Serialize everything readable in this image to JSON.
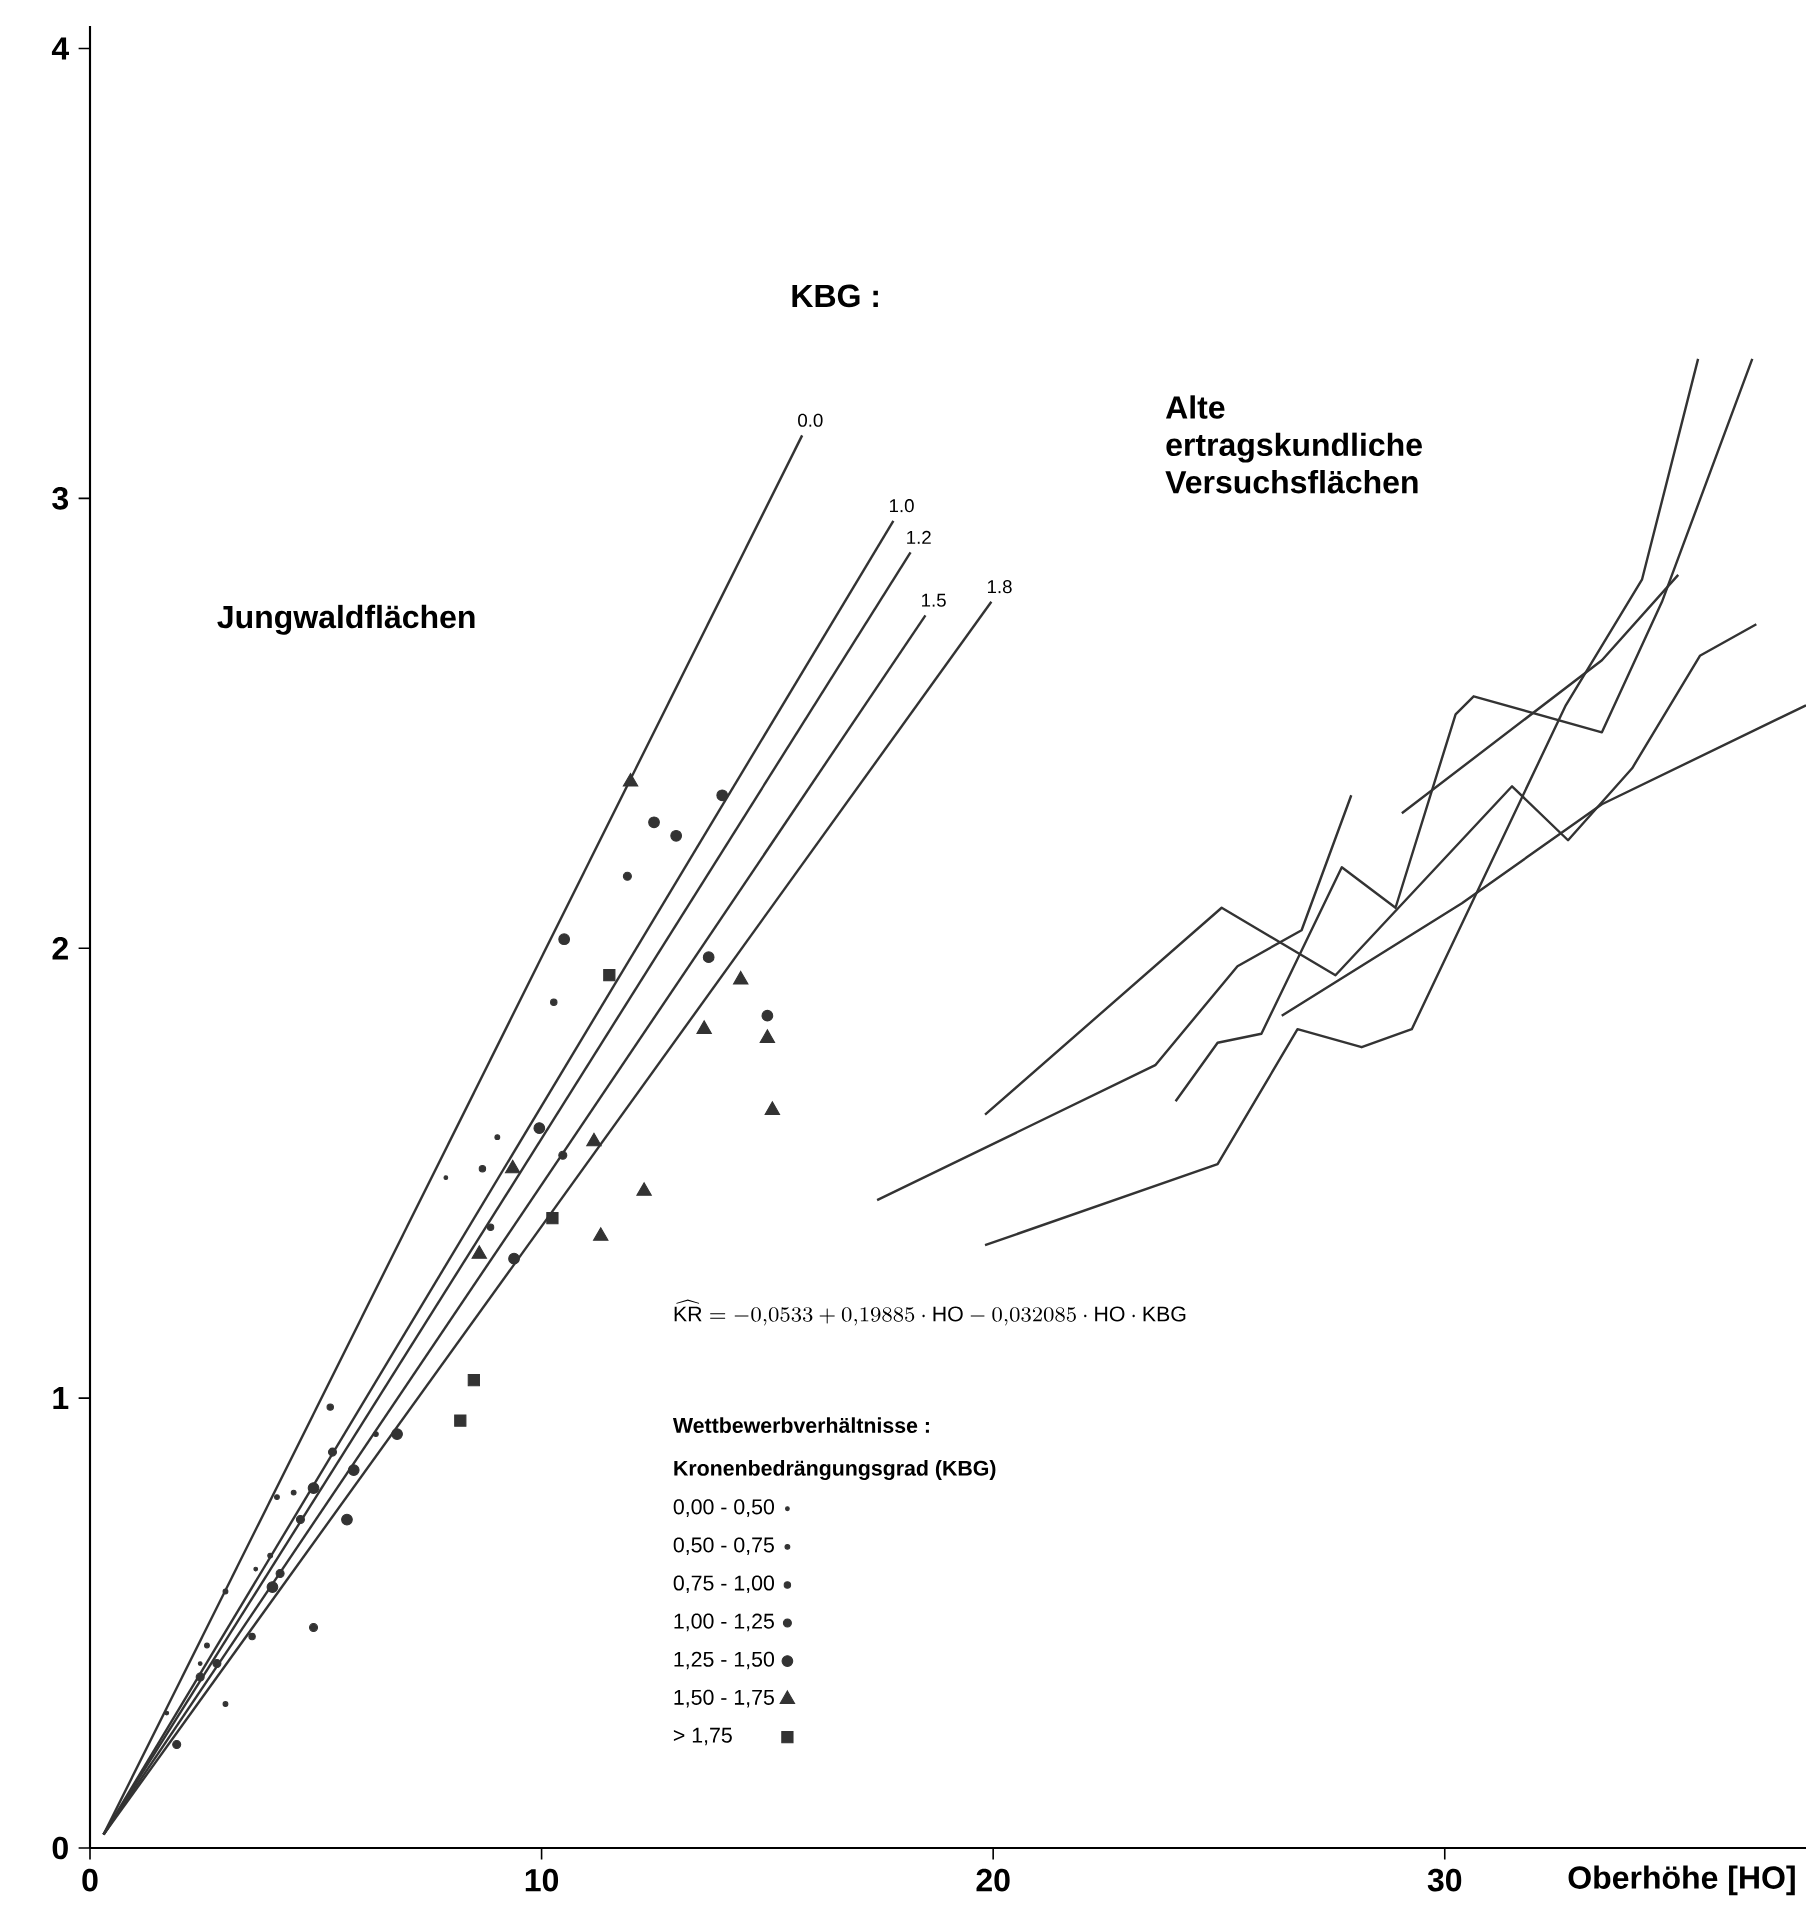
{
  "chart_data": {
    "type": "scatter",
    "xlabel": "Oberhöhe  [HO]",
    "xlim": [
      0,
      38
    ],
    "ylim": [
      0,
      4.05
    ],
    "xticks": [
      0,
      10,
      20,
      30
    ],
    "yticks": [
      0,
      1,
      2,
      3,
      4
    ],
    "legend": "bottom",
    "legend_title": "Kronenbedrängungsgrad   (KBG)",
    "annotations": [
      "KBG :",
      "Jungwaldflächen",
      "Alte ertragskundliche Versuchsflächen",
      "\\widehat{\\mathrm{KR}} = -0{,}0533 + 0{,}19885 \\cdot \\mathrm{HO} - 0{,}032085 \\cdot \\mathrm{HO} \\cdot \\mathrm{KBG}",
      "Wettbewerbverhältnisse :"
    ],
    "series": [
      {
        "type": "line",
        "name": "0.0",
        "color": "#333333",
        "x": [
          0.3,
          15.77
        ],
        "values": [
          0.03,
          3.14
        ]
      },
      {
        "type": "line",
        "name": "1.0",
        "color": "#333333",
        "x": [
          0.3,
          17.79
        ],
        "values": [
          0.03,
          2.95
        ]
      },
      {
        "type": "line",
        "name": "1.2",
        "color": "#333333",
        "x": [
          0.3,
          18.17
        ],
        "values": [
          0.03,
          2.88
        ]
      },
      {
        "type": "line",
        "name": "1.5",
        "color": "#333333",
        "x": [
          0.3,
          18.5
        ],
        "values": [
          0.03,
          2.74
        ]
      },
      {
        "type": "line",
        "name": "1.8",
        "color": "#333333",
        "x": [
          0.3,
          19.96
        ],
        "values": [
          0.03,
          2.77
        ]
      },
      {
        "type": "line",
        "color": "#333333",
        "x": [
          17.43,
          23.59,
          25.41,
          26.83,
          27.93
        ],
        "values": [
          1.44,
          1.74,
          1.96,
          2.04,
          2.34
        ]
      },
      {
        "type": "line",
        "color": "#333333",
        "x": [
          19.82,
          25.06,
          27.58,
          31.49,
          32.73,
          34.15,
          35.65,
          36.9
        ],
        "values": [
          1.63,
          2.09,
          1.94,
          2.36,
          2.24,
          2.4,
          2.65,
          2.72
        ]
      },
      {
        "type": "line",
        "color": "#333333",
        "x": [
          26.39,
          30.38,
          33.48,
          38.0
        ],
        "values": [
          1.85,
          2.1,
          2.32,
          2.54
        ]
      },
      {
        "type": "line",
        "color": "#333333",
        "x": [
          19.82,
          24.97,
          26.74,
          28.16,
          29.27,
          32.68,
          34.37,
          35.61
        ],
        "values": [
          1.34,
          1.52,
          1.82,
          1.78,
          1.82,
          2.54,
          2.82,
          3.31
        ]
      },
      {
        "type": "line",
        "color": "#333333",
        "x": [
          24.04,
          24.97,
          25.94,
          27.72,
          28.91,
          30.24,
          30.64,
          33.48,
          34.81,
          36.81
        ],
        "values": [
          1.66,
          1.79,
          1.81,
          2.18,
          2.09,
          2.52,
          2.56,
          2.48,
          2.77,
          3.31
        ]
      },
      {
        "type": "line",
        "color": "#333333",
        "x": [
          29.05,
          33.48,
          35.17
        ],
        "values": [
          2.3,
          2.64,
          2.83
        ]
      },
      {
        "name": "0,00 - 0,50",
        "marker": "circle",
        "color": "#333333",
        "x": [
          7.88,
          3.67,
          2.44,
          1.7
        ],
        "values": [
          1.49,
          0.62,
          0.41,
          0.3
        ]
      },
      {
        "name": "0,50 - 0,75",
        "marker": "circle",
        "color": "#333333",
        "x": [
          9.02,
          4.51,
          4.14,
          3.99,
          3.0,
          3.0,
          2.59,
          6.33
        ],
        "values": [
          1.58,
          0.79,
          0.78,
          0.65,
          0.57,
          0.32,
          0.45,
          0.92
        ]
      },
      {
        "name": "0,75 - 1,00",
        "marker": "circle",
        "color": "#333333",
        "x": [
          10.27,
          8.69,
          8.87,
          3.59,
          5.32
        ],
        "values": [
          1.88,
          1.51,
          1.38,
          0.47,
          0.98
        ]
      },
      {
        "name": "1,00 - 1,25",
        "marker": "circle",
        "color": "#333333",
        "x": [
          11.9,
          10.47,
          5.37,
          4.66,
          4.95,
          4.21,
          2.81,
          2.44,
          1.92
        ],
        "values": [
          2.16,
          1.54,
          0.88,
          0.73,
          0.49,
          0.61,
          0.41,
          0.38,
          0.23
        ]
      },
      {
        "name": "1,25 - 1,50",
        "marker": "circle",
        "color": "#333333",
        "x": [
          12.49,
          12.98,
          14.0,
          10.5,
          13.7,
          15.0,
          9.95,
          9.39,
          6.8,
          5.84,
          4.95,
          5.69,
          4.04
        ],
        "values": [
          2.28,
          2.25,
          2.34,
          2.02,
          1.98,
          1.85,
          1.6,
          1.31,
          0.92,
          0.84,
          0.8,
          0.73,
          0.58
        ]
      },
      {
        "name": "1,50 - 1,75",
        "marker": "triangle",
        "color": "#333333",
        "x": [
          11.97,
          14.41,
          13.6,
          15.0,
          15.11,
          9.36,
          11.16,
          12.27,
          11.31,
          8.62
        ],
        "values": [
          2.37,
          1.93,
          1.82,
          1.8,
          1.64,
          1.51,
          1.57,
          1.46,
          1.36,
          1.32
        ]
      },
      {
        "name": "> 1,75",
        "marker": "square",
        "color": "#333333",
        "x": [
          11.5,
          10.24,
          8.5,
          8.2
        ],
        "values": [
          1.94,
          1.4,
          1.04,
          0.95
        ]
      }
    ]
  }
}
